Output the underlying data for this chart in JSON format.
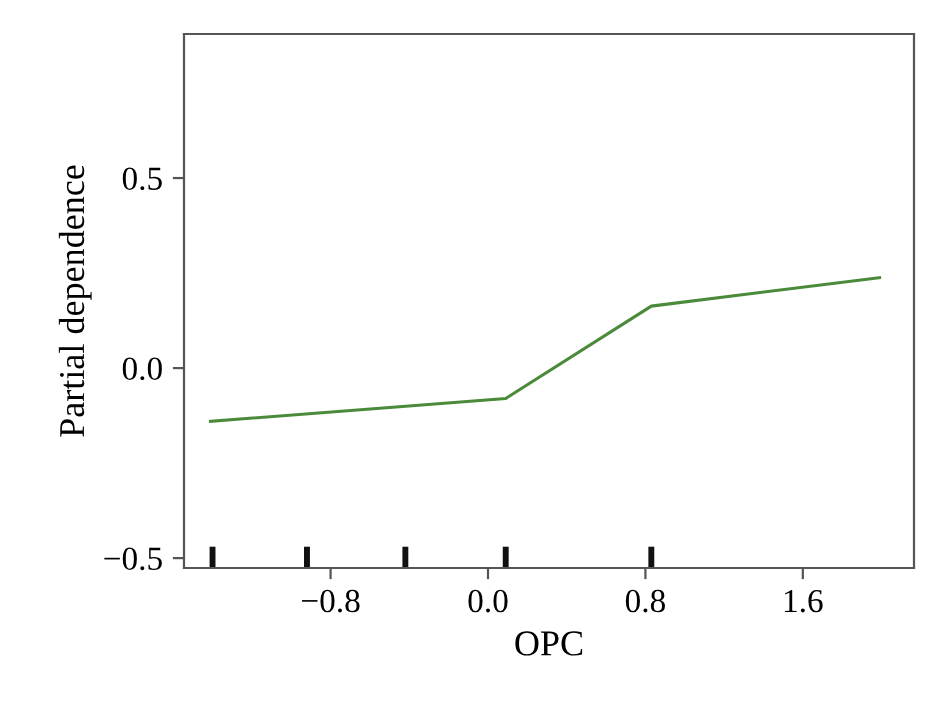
{
  "chart_data": {
    "type": "line",
    "xlabel": "OPC",
    "ylabel": "Partial dependence",
    "xlim": [
      -1.545,
      2.165
    ],
    "ylim": [
      -0.526,
      0.879
    ],
    "xticks": [
      {
        "value": -0.8,
        "label": "−0.8"
      },
      {
        "value": 0,
        "label": "0.0"
      },
      {
        "value": 0.8,
        "label": "0.8"
      },
      {
        "value": 1.6,
        "label": "1.6"
      }
    ],
    "yticks": [
      {
        "value": -0.5,
        "label": "−0.5"
      },
      {
        "value": 0,
        "label": "0.0"
      },
      {
        "value": 0.5,
        "label": "0.5"
      }
    ],
    "grid": false,
    "legend": false,
    "series": [
      {
        "color": "#4a8a3a",
        "x": [
          -1.41,
          0.09,
          0.83,
          1.99
        ],
        "values": [
          -0.14,
          -0.08,
          0.163,
          0.238
        ]
      },
      {
        "type": "bar",
        "color": "#111111",
        "x": [
          -1.4,
          -0.92,
          -0.42,
          0.09,
          0.83
        ],
        "base": [
          -0.526,
          -0.526,
          -0.526,
          -0.526,
          -0.526
        ],
        "values": [
          0.056,
          0.056,
          0.056,
          0.056,
          0.056
        ]
      }
    ]
  }
}
